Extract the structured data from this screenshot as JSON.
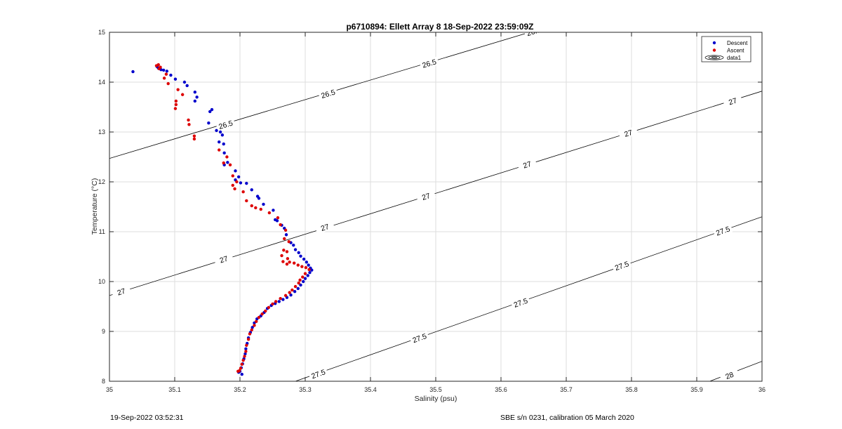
{
  "footer": {
    "left": "19-Sep-2022 03:52:31",
    "right": "SBE s/n 0231, calibration 05 March 2020"
  },
  "chart_data": {
    "type": "scatter",
    "title": "p6710894: Ellett Array 8 18-Sep-2022 23:59:09Z",
    "xlabel": "Salinity (psu)",
    "ylabel": "Temperature (°C)",
    "xlim": [
      35,
      36
    ],
    "ylim": [
      8,
      15
    ],
    "xticks": [
      35,
      35.1,
      35.2,
      35.3,
      35.4,
      35.5,
      35.6,
      35.7,
      35.8,
      35.9,
      36
    ],
    "yticks": [
      8,
      9,
      10,
      11,
      12,
      13,
      14,
      15
    ],
    "grid": true,
    "legend": {
      "placement": "top-right",
      "entries": [
        "Descent",
        "Ascent",
        "data1"
      ]
    },
    "colors": {
      "descent": "#0000cc",
      "ascent": "#dd0000",
      "contour": "#000000",
      "grid": "#dedede"
    },
    "contours": [
      {
        "level": "26.5",
        "points": [
          [
            35,
            12.47
          ],
          [
            36,
            16.4
          ]
        ],
        "labels": [
          [
            35.178,
            13.15
          ],
          [
            35.335,
            13.77
          ],
          [
            35.49,
            14.38
          ],
          [
            35.65,
            15.02
          ]
        ]
      },
      {
        "level": "27",
        "points": [
          [
            35,
            9.72
          ],
          [
            36,
            13.82
          ]
        ],
        "labels": [
          [
            35.018,
            9.8
          ],
          [
            35.175,
            10.45
          ],
          [
            35.33,
            11.09
          ],
          [
            35.485,
            11.71
          ],
          [
            35.64,
            12.35
          ],
          [
            35.795,
            12.98
          ],
          [
            35.955,
            13.62
          ]
        ]
      },
      {
        "level": "27.5",
        "points": [
          [
            35.285,
            8
          ],
          [
            36,
            11.3
          ]
        ],
        "labels": [
          [
            35.32,
            8.15
          ],
          [
            35.475,
            8.87
          ],
          [
            35.63,
            9.58
          ],
          [
            35.785,
            10.32
          ],
          [
            35.94,
            11.02
          ]
        ]
      },
      {
        "level": "28",
        "points": [
          [
            35.92,
            8
          ],
          [
            36,
            8.4
          ]
        ],
        "labels": [
          [
            35.95,
            8.12
          ]
        ]
      }
    ],
    "series": [
      {
        "name": "Descent",
        "points": [
          [
            35.036,
            14.21
          ],
          [
            35.073,
            14.31
          ],
          [
            35.075,
            14.28
          ],
          [
            35.079,
            14.25
          ],
          [
            35.083,
            14.24
          ],
          [
            35.088,
            14.22
          ],
          [
            35.094,
            14.14
          ],
          [
            35.101,
            14.06
          ],
          [
            35.115,
            14.0
          ],
          [
            35.119,
            13.93
          ],
          [
            35.131,
            13.8
          ],
          [
            35.134,
            13.7
          ],
          [
            35.131,
            13.62
          ],
          [
            35.157,
            13.45
          ],
          [
            35.154,
            13.41
          ],
          [
            35.152,
            13.18
          ],
          [
            35.164,
            13.03
          ],
          [
            35.17,
            13.0
          ],
          [
            35.173,
            12.94
          ],
          [
            35.168,
            12.8
          ],
          [
            35.175,
            12.76
          ],
          [
            35.176,
            12.58
          ],
          [
            35.181,
            12.39
          ],
          [
            35.176,
            12.34
          ],
          [
            35.193,
            12.22
          ],
          [
            35.198,
            12.1
          ],
          [
            35.193,
            12.04
          ],
          [
            35.201,
            11.98
          ],
          [
            35.21,
            11.97
          ],
          [
            35.218,
            11.84
          ],
          [
            35.227,
            11.71
          ],
          [
            35.229,
            11.67
          ],
          [
            35.236,
            11.55
          ],
          [
            35.251,
            11.43
          ],
          [
            35.254,
            11.24
          ],
          [
            35.257,
            11.22
          ],
          [
            35.264,
            11.13
          ],
          [
            35.268,
            11.07
          ],
          [
            35.271,
            10.94
          ],
          [
            35.278,
            10.78
          ],
          [
            35.282,
            10.73
          ],
          [
            35.285,
            10.64
          ],
          [
            35.29,
            10.58
          ],
          [
            35.293,
            10.51
          ],
          [
            35.298,
            10.45
          ],
          [
            35.302,
            10.39
          ],
          [
            35.305,
            10.33
          ],
          [
            35.308,
            10.27
          ],
          [
            35.31,
            10.23
          ],
          [
            35.307,
            10.18
          ],
          [
            35.304,
            10.12
          ],
          [
            35.3,
            10.06
          ],
          [
            35.297,
            10.0
          ],
          [
            35.293,
            9.93
          ],
          [
            35.289,
            9.86
          ],
          [
            35.284,
            9.8
          ],
          [
            35.278,
            9.73
          ],
          [
            35.272,
            9.68
          ],
          [
            35.266,
            9.64
          ],
          [
            35.26,
            9.6
          ],
          [
            35.254,
            9.56
          ],
          [
            35.248,
            9.52
          ],
          [
            35.242,
            9.46
          ],
          [
            35.237,
            9.38
          ],
          [
            35.232,
            9.31
          ],
          [
            35.226,
            9.25
          ],
          [
            35.222,
            9.17
          ],
          [
            35.219,
            9.08
          ],
          [
            35.216,
            8.98
          ],
          [
            35.213,
            8.87
          ],
          [
            35.211,
            8.76
          ],
          [
            35.209,
            8.65
          ],
          [
            35.208,
            8.55
          ],
          [
            35.206,
            8.45
          ],
          [
            35.204,
            8.35
          ],
          [
            35.202,
            8.27
          ],
          [
            35.2,
            8.2
          ],
          [
            35.198,
            8.18
          ],
          [
            35.203,
            8.14
          ]
        ]
      },
      {
        "name": "Ascent",
        "points": [
          [
            35.072,
            14.33
          ],
          [
            35.075,
            14.35
          ],
          [
            35.078,
            14.3
          ],
          [
            35.076,
            14.27
          ],
          [
            35.087,
            14.16
          ],
          [
            35.084,
            14.08
          ],
          [
            35.09,
            13.97
          ],
          [
            35.105,
            13.85
          ],
          [
            35.112,
            13.75
          ],
          [
            35.102,
            13.62
          ],
          [
            35.102,
            13.55
          ],
          [
            35.101,
            13.47
          ],
          [
            35.121,
            13.24
          ],
          [
            35.122,
            13.15
          ],
          [
            35.13,
            12.92
          ],
          [
            35.13,
            12.86
          ],
          [
            35.168,
            12.64
          ],
          [
            35.18,
            12.5
          ],
          [
            35.175,
            12.38
          ],
          [
            35.185,
            12.34
          ],
          [
            35.189,
            12.12
          ],
          [
            35.195,
            12.0
          ],
          [
            35.189,
            11.93
          ],
          [
            35.192,
            11.86
          ],
          [
            35.205,
            11.8
          ],
          [
            35.21,
            11.62
          ],
          [
            35.218,
            11.52
          ],
          [
            35.224,
            11.48
          ],
          [
            35.232,
            11.45
          ],
          [
            35.245,
            11.38
          ],
          [
            35.258,
            11.28
          ],
          [
            35.262,
            11.14
          ],
          [
            35.27,
            11.03
          ],
          [
            35.268,
            10.86
          ],
          [
            35.275,
            10.8
          ],
          [
            35.267,
            10.63
          ],
          [
            35.272,
            10.6
          ],
          [
            35.264,
            10.52
          ],
          [
            35.273,
            10.46
          ],
          [
            35.266,
            10.4
          ],
          [
            35.272,
            10.35
          ],
          [
            35.276,
            10.39
          ],
          [
            35.283,
            10.37
          ],
          [
            35.289,
            10.33
          ],
          [
            35.295,
            10.3
          ],
          [
            35.301,
            10.28
          ],
          [
            35.306,
            10.24
          ],
          [
            35.3,
            10.16
          ],
          [
            35.296,
            10.09
          ],
          [
            35.292,
            10.03
          ],
          [
            35.29,
            9.97
          ],
          [
            35.285,
            9.9
          ],
          [
            35.28,
            9.83
          ],
          [
            35.276,
            9.78
          ],
          [
            35.27,
            9.72
          ],
          [
            35.262,
            9.66
          ],
          [
            35.255,
            9.6
          ],
          [
            35.25,
            9.55
          ],
          [
            35.244,
            9.48
          ],
          [
            35.239,
            9.41
          ],
          [
            35.234,
            9.35
          ],
          [
            35.229,
            9.28
          ],
          [
            35.225,
            9.2
          ],
          [
            35.222,
            9.12
          ],
          [
            35.218,
            9.03
          ],
          [
            35.215,
            8.95
          ],
          [
            35.213,
            8.84
          ],
          [
            35.21,
            8.72
          ],
          [
            35.209,
            8.6
          ],
          [
            35.207,
            8.5
          ],
          [
            35.205,
            8.42
          ],
          [
            35.203,
            8.34
          ],
          [
            35.201,
            8.26
          ],
          [
            35.199,
            8.21
          ],
          [
            35.197,
            8.2
          ]
        ]
      }
    ]
  }
}
